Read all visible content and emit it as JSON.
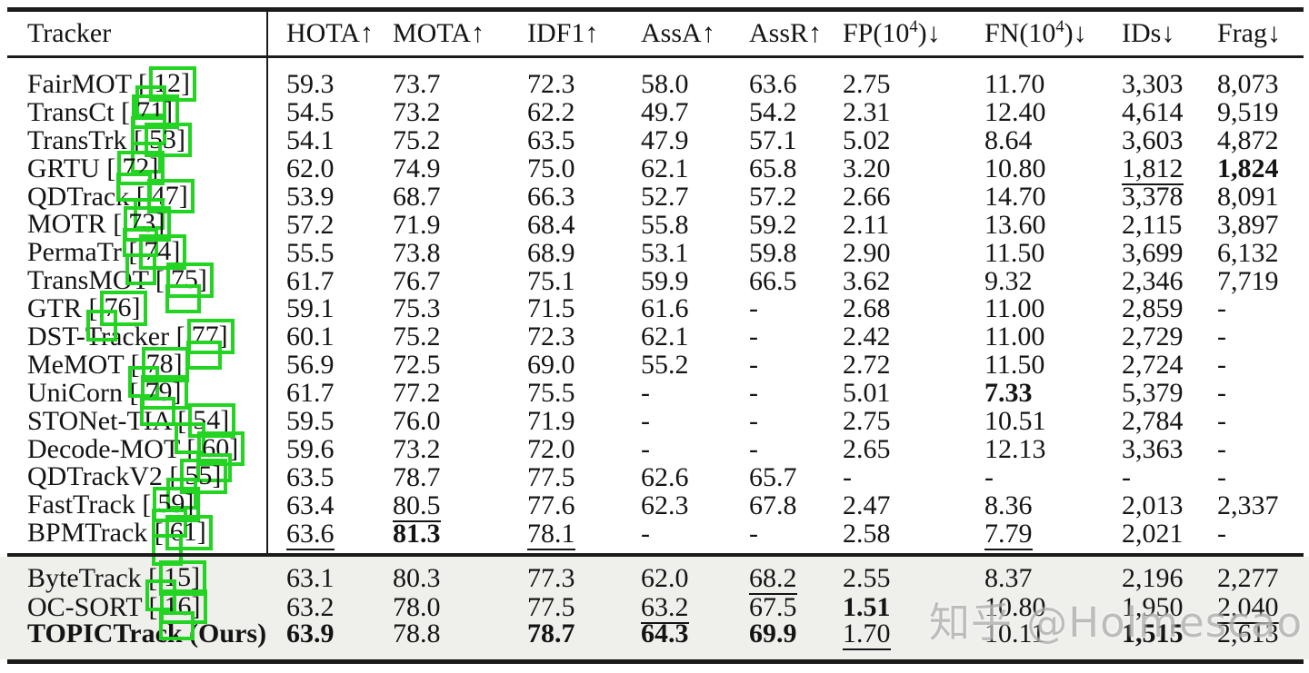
{
  "watermark": {
    "text": "知乎 @Holmescao"
  },
  "colors": {
    "annotation_green": "#23d423",
    "ours_section_bg": "#efefec",
    "rule_color": "#1b1b1b"
  },
  "table": {
    "header": {
      "tracker_label": "Tracker",
      "metrics": [
        {
          "text": "HOTA",
          "sup": "",
          "close": "",
          "arrow": "↑"
        },
        {
          "text": "MOTA",
          "sup": "",
          "close": "",
          "arrow": "↑"
        },
        {
          "text": "IDF1",
          "sup": "",
          "close": "",
          "arrow": "↑"
        },
        {
          "text": "AssA",
          "sup": "",
          "close": "",
          "arrow": "↑"
        },
        {
          "text": "AssR",
          "sup": "",
          "close": "",
          "arrow": "↑"
        },
        {
          "text": "FP(10",
          "sup": "4",
          "close": ")",
          "arrow": "↓"
        },
        {
          "text": "FN(10",
          "sup": "4",
          "close": ")",
          "arrow": "↓"
        },
        {
          "text": "IDs",
          "sup": "",
          "close": "",
          "arrow": "↓"
        },
        {
          "text": "Frag",
          "sup": "",
          "close": "",
          "arrow": "↓"
        }
      ]
    },
    "main_rows": [
      {
        "name": "FairMOT",
        "cite": "12",
        "values": [
          "59.3",
          "73.7",
          "72.3",
          "58.0",
          "63.6",
          "2.75",
          "11.70",
          "3,303",
          "8,073"
        ],
        "bold": [],
        "underline": []
      },
      {
        "name": "TransCt",
        "cite": "71",
        "values": [
          "54.5",
          "73.2",
          "62.2",
          "49.7",
          "54.2",
          "2.31",
          "12.40",
          "4,614",
          "9,519"
        ],
        "bold": [],
        "underline": []
      },
      {
        "name": "TransTrk",
        "cite": "53",
        "values": [
          "54.1",
          "75.2",
          "63.5",
          "47.9",
          "57.1",
          "5.02",
          "8.64",
          "3,603",
          "4,872"
        ],
        "bold": [],
        "underline": []
      },
      {
        "name": "GRTU",
        "cite": "72",
        "values": [
          "62.0",
          "74.9",
          "75.0",
          "62.1",
          "65.8",
          "3.20",
          "10.80",
          "1,812",
          "1,824"
        ],
        "bold": [
          8
        ],
        "underline": [
          7
        ]
      },
      {
        "name": "QDTrack",
        "cite": "47",
        "values": [
          "53.9",
          "68.7",
          "66.3",
          "52.7",
          "57.2",
          "2.66",
          "14.70",
          "3,378",
          "8,091"
        ],
        "bold": [],
        "underline": []
      },
      {
        "name": "MOTR",
        "cite": "73",
        "values": [
          "57.2",
          "71.9",
          "68.4",
          "55.8",
          "59.2",
          "2.11",
          "13.60",
          "2,115",
          "3,897"
        ],
        "bold": [],
        "underline": []
      },
      {
        "name": "PermaTr",
        "cite": "74",
        "values": [
          "55.5",
          "73.8",
          "68.9",
          "53.1",
          "59.8",
          "2.90",
          "11.50",
          "3,699",
          "6,132"
        ],
        "bold": [],
        "underline": []
      },
      {
        "name": "TransMOT",
        "cite": "75",
        "values": [
          "61.7",
          "76.7",
          "75.1",
          "59.9",
          "66.5",
          "3.62",
          "9.32",
          "2,346",
          "7,719"
        ],
        "bold": [],
        "underline": []
      },
      {
        "name": "GTR",
        "cite": "76",
        "values": [
          "59.1",
          "75.3",
          "71.5",
          "61.6",
          "-",
          "2.68",
          "11.00",
          "2,859",
          "-"
        ],
        "bold": [],
        "underline": []
      },
      {
        "name": "DST-Tracker",
        "cite": "77",
        "values": [
          "60.1",
          "75.2",
          "72.3",
          "62.1",
          "-",
          "2.42",
          "11.00",
          "2,729",
          "-"
        ],
        "bold": [],
        "underline": []
      },
      {
        "name": "MeMOT",
        "cite": "78",
        "values": [
          "56.9",
          "72.5",
          "69.0",
          "55.2",
          "-",
          "2.72",
          "11.50",
          "2,724",
          "-"
        ],
        "bold": [],
        "underline": []
      },
      {
        "name": "UniCorn",
        "cite": "79",
        "values": [
          "61.7",
          "77.2",
          "75.5",
          "-",
          "-",
          "5.01",
          "7.33",
          "5,379",
          "-"
        ],
        "bold": [
          6
        ],
        "underline": []
      },
      {
        "name": "STONet-TIA",
        "cite": "54",
        "values": [
          "59.5",
          "76.0",
          "71.9",
          "-",
          "-",
          "2.75",
          "10.51",
          "2,784",
          "-"
        ],
        "bold": [],
        "underline": []
      },
      {
        "name": "Decode-MOT",
        "cite": "60",
        "values": [
          "59.6",
          "73.2",
          "72.0",
          "-",
          "-",
          "2.65",
          "12.13",
          "3,363",
          "-"
        ],
        "bold": [],
        "underline": []
      },
      {
        "name": "QDTrackV2",
        "cite": "55",
        "values": [
          "63.5",
          "78.7",
          "77.5",
          "62.6",
          "65.7",
          "-",
          "-",
          "-",
          "-"
        ],
        "bold": [],
        "underline": []
      },
      {
        "name": "FastTrack",
        "cite": "59",
        "values": [
          "63.4",
          "80.5",
          "77.6",
          "62.3",
          "67.8",
          "2.47",
          "8.36",
          "2,013",
          "2,337"
        ],
        "bold": [],
        "underline": [
          1
        ]
      },
      {
        "name": "BPMTrack",
        "cite": "61",
        "values": [
          "63.6",
          "81.3",
          "78.1",
          "-",
          "-",
          "2.58",
          "7.79",
          "2,021",
          "-"
        ],
        "bold": [
          1
        ],
        "underline": [
          0,
          2,
          6
        ]
      }
    ],
    "ours_rows": [
      {
        "name": "ByteTrack",
        "cite": "15",
        "values": [
          "63.1",
          "80.3",
          "77.3",
          "62.0",
          "68.2",
          "2.55",
          "8.37",
          "2,196",
          "2,277"
        ],
        "bold": [],
        "underline": [
          4
        ]
      },
      {
        "name": "OC-SORT",
        "cite": "16",
        "values": [
          "63.2",
          "78.0",
          "77.5",
          "63.2",
          "67.5",
          "1.51",
          "10.80",
          "1,950",
          "2,040"
        ],
        "bold": [
          5
        ],
        "underline": [
          3,
          8
        ]
      },
      {
        "name": "TOPICTrack (Ours)",
        "cite": "",
        "name_bold": true,
        "values": [
          "63.9",
          "78.8",
          "78.7",
          "64.3",
          "69.9",
          "1.70",
          "10.11",
          "1,515",
          "2,613"
        ],
        "bold": [
          0,
          2,
          3,
          4,
          7
        ],
        "underline": [
          5
        ]
      }
    ]
  }
}
